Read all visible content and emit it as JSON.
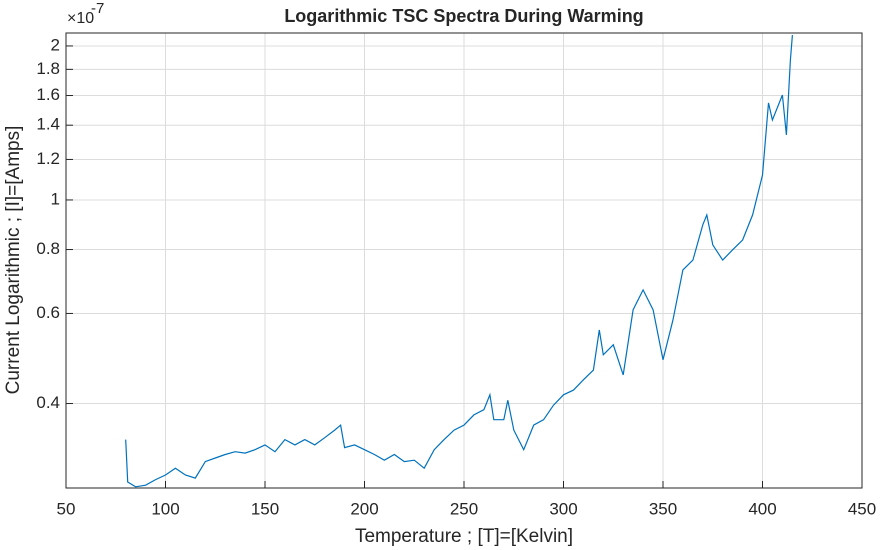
{
  "chart_data": {
    "type": "line",
    "title": "Logarithmic TSC Spectra During Warming",
    "x_label": "Temperature ; [T]=[Kelvin]",
    "y_label": "Current Logarithmic ; [I]=[Amps]",
    "y_exponent_base": "×10",
    "y_exponent": "-7",
    "yscale": "log",
    "grid": true,
    "xlim": [
      50,
      450
    ],
    "xticks": [
      50,
      100,
      150,
      200,
      250,
      300,
      350,
      400,
      450
    ],
    "ylim": [
      0.2735,
      2.12
    ],
    "yticks": [
      0.4,
      0.6,
      0.8,
      1,
      1.2,
      1.4,
      1.6,
      1.8,
      2
    ],
    "x": [
      80,
      81,
      85,
      90,
      95,
      100,
      105,
      110,
      115,
      120,
      125,
      130,
      135,
      140,
      145,
      150,
      155,
      160,
      165,
      170,
      175,
      180,
      185,
      188,
      190,
      195,
      200,
      205,
      210,
      215,
      220,
      225,
      230,
      235,
      240,
      245,
      250,
      255,
      260,
      263,
      265,
      270,
      272,
      275,
      280,
      285,
      290,
      295,
      300,
      305,
      310,
      315,
      318,
      320,
      325,
      330,
      335,
      340,
      345,
      350,
      355,
      360,
      365,
      370,
      372,
      375,
      380,
      385,
      390,
      395,
      400,
      403,
      405,
      410,
      412,
      414,
      415
    ],
    "series": [
      {
        "name": "TSC",
        "color": "#0072bd",
        "values": [
          0.34,
          0.281,
          0.275,
          0.277,
          0.284,
          0.29,
          0.299,
          0.29,
          0.286,
          0.308,
          0.313,
          0.318,
          0.322,
          0.32,
          0.325,
          0.332,
          0.322,
          0.34,
          0.332,
          0.34,
          0.332,
          0.343,
          0.355,
          0.363,
          0.328,
          0.332,
          0.325,
          0.318,
          0.31,
          0.318,
          0.308,
          0.31,
          0.299,
          0.325,
          0.34,
          0.355,
          0.363,
          0.38,
          0.389,
          0.416,
          0.372,
          0.372,
          0.406,
          0.355,
          0.325,
          0.363,
          0.372,
          0.397,
          0.416,
          0.425,
          0.445,
          0.465,
          0.557,
          0.498,
          0.521,
          0.455,
          0.61,
          0.667,
          0.61,
          0.487,
          0.582,
          0.73,
          0.763,
          0.894,
          0.935,
          0.817,
          0.763,
          0.799,
          0.835,
          0.935,
          1.119,
          1.548,
          1.433,
          1.604,
          1.34,
          1.878,
          2.1
        ]
      }
    ]
  }
}
